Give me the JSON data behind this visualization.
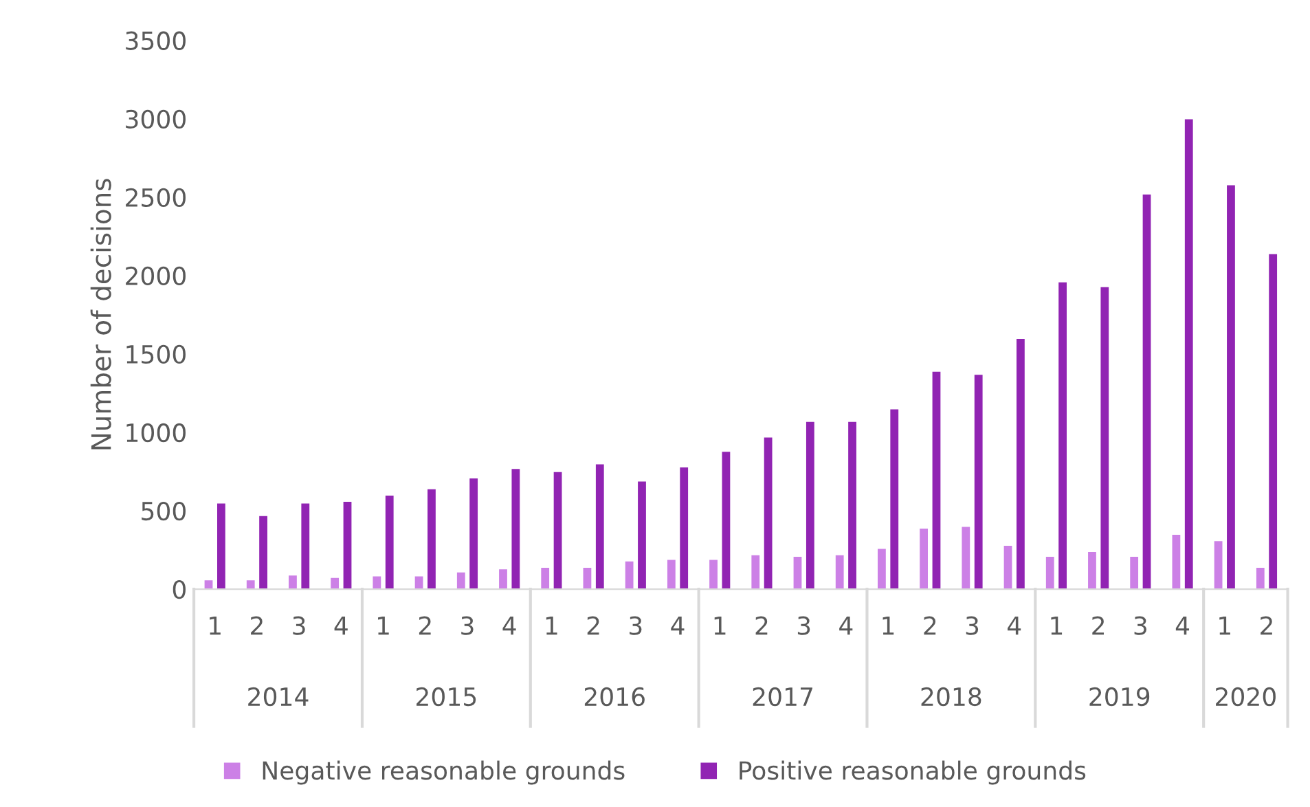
{
  "chart_data": {
    "type": "bar",
    "ylabel": "Number of decisions",
    "categories": [
      "1",
      "2",
      "3",
      "4",
      "1",
      "2",
      "3",
      "4",
      "1",
      "2",
      "3",
      "4",
      "1",
      "2",
      "3",
      "4",
      "1",
      "2",
      "3",
      "4",
      "1",
      "2",
      "3",
      "4",
      "1",
      "2"
    ],
    "annotations": [
      "2014",
      "2015",
      "2016",
      "2017",
      "2018",
      "2019",
      "2020"
    ],
    "series": [
      {
        "name": "Negative reasonable grounds",
        "color": "#cc80e6",
        "values": [
          60,
          60,
          90,
          75,
          85,
          85,
          110,
          130,
          140,
          140,
          180,
          190,
          190,
          220,
          210,
          220,
          260,
          390,
          400,
          280,
          210,
          240,
          210,
          350,
          310,
          140
        ]
      },
      {
        "name": "Positive reasonable grounds",
        "color": "#9124b3",
        "values": [
          550,
          470,
          550,
          560,
          600,
          640,
          710,
          770,
          750,
          800,
          690,
          780,
          880,
          970,
          1070,
          1070,
          1150,
          1390,
          1370,
          1600,
          1960,
          1930,
          2520,
          3000,
          2580,
          2140
        ]
      }
    ],
    "ylim": [
      0,
      3500
    ],
    "yticks": [
      0,
      500,
      1000,
      1500,
      2000,
      2500,
      3000,
      3500
    ],
    "grid": false,
    "legend": "bottom"
  }
}
